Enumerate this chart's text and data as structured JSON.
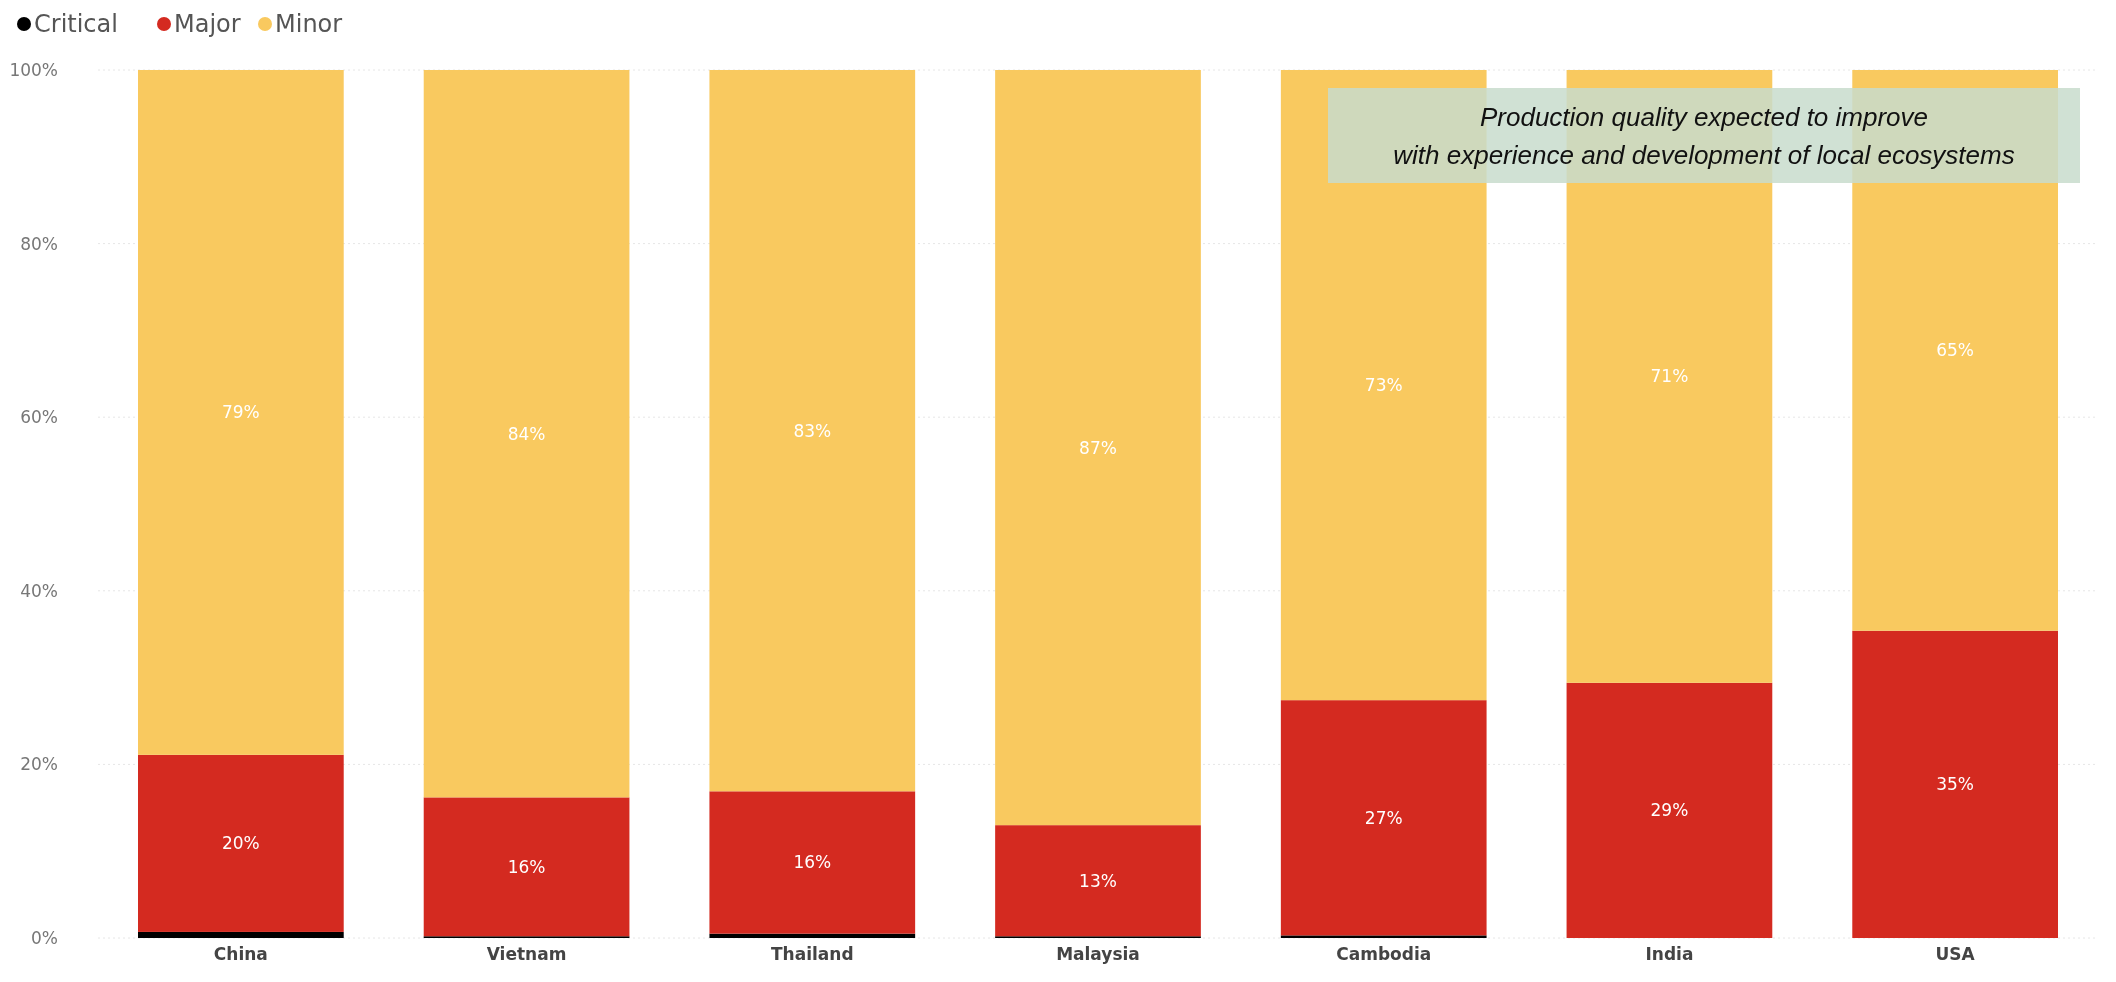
{
  "chart_data": {
    "type": "bar",
    "stacked": true,
    "categories": [
      "China",
      "Vietnam",
      "Thailand",
      "Malaysia",
      "Cambodia",
      "India",
      "USA"
    ],
    "series": [
      {
        "name": "Critical",
        "color": "#000000",
        "values": [
          0.7,
          0.2,
          0.5,
          0.2,
          0.3,
          0,
          0
        ]
      },
      {
        "name": "Major",
        "color": "#d42a20",
        "values": [
          20.4,
          16.0,
          16.4,
          12.8,
          27.1,
          29.4,
          35.4
        ],
        "value_labels": [
          "20%",
          "16%",
          "16%",
          "13%",
          "27%",
          "29%",
          "35%"
        ]
      },
      {
        "name": "Minor",
        "color": "#f9c95f",
        "values": [
          78.9,
          83.8,
          83.1,
          87.0,
          72.6,
          70.6,
          64.6
        ],
        "value_labels": [
          "79%",
          "84%",
          "83%",
          "87%",
          "73%",
          "71%",
          "65%"
        ]
      }
    ],
    "ylim": [
      0,
      100
    ],
    "yticks": [
      {
        "value": 0,
        "label": "0%"
      },
      {
        "value": 20,
        "label": "20%"
      },
      {
        "value": 40,
        "label": "40%"
      },
      {
        "value": 60,
        "label": "60%"
      },
      {
        "value": 80,
        "label": "80%"
      },
      {
        "value": 100,
        "label": "100%"
      }
    ],
    "grid": "y",
    "legend": "top left",
    "annotations": [
      "Production quality expected to improve with experience and development of local ecosystems"
    ]
  }
}
